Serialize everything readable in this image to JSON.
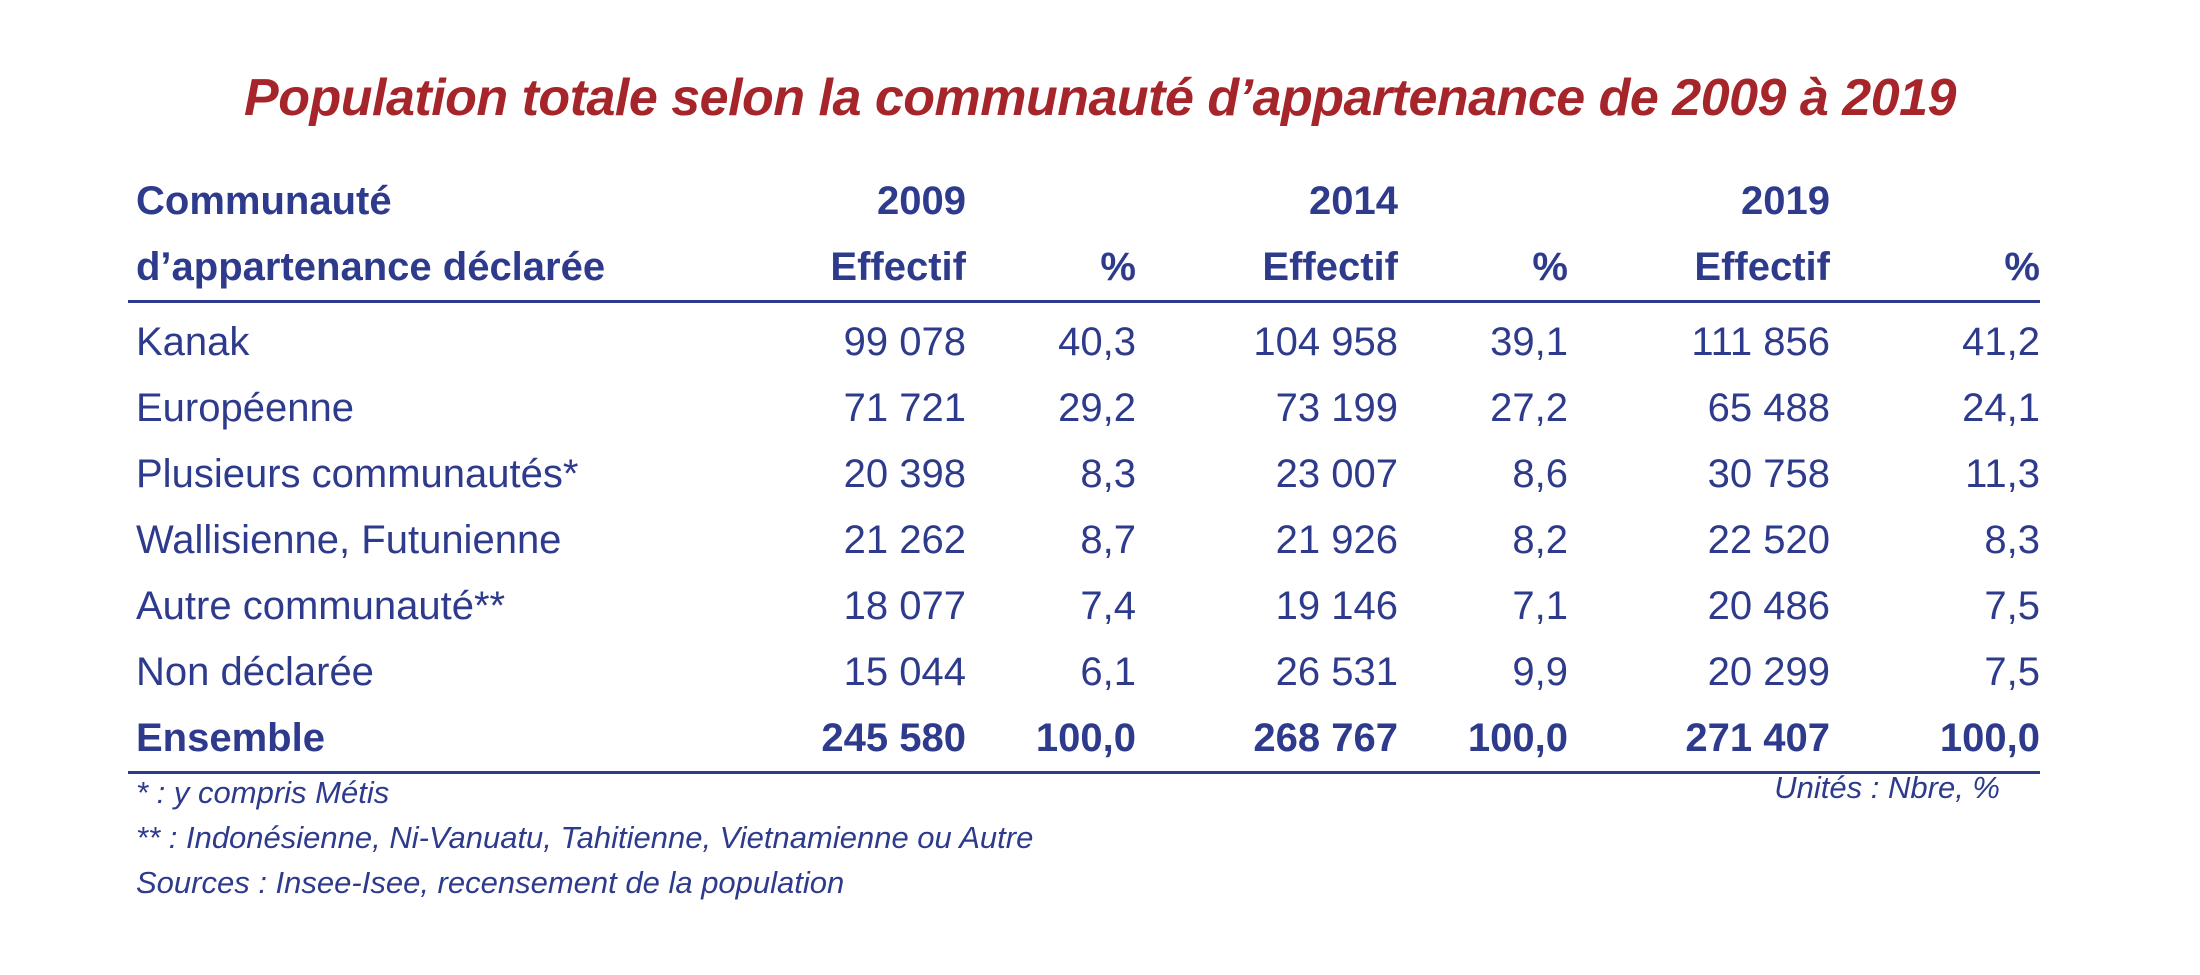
{
  "title": "Population totale selon la communauté d’appartenance de 2009 à 2019",
  "header": {
    "label_line1": "Communauté",
    "label_line2": "d’appartenance déclarée",
    "years": [
      "2009",
      "2014",
      "2019"
    ],
    "effectif": "Effectif",
    "pct": "%"
  },
  "rows": [
    {
      "label": "Kanak",
      "v": [
        "99 078",
        "40,3",
        "104 958",
        "39,1",
        "111 856",
        "41,2"
      ]
    },
    {
      "label": "Européenne",
      "v": [
        "71 721",
        "29,2",
        "73 199",
        "27,2",
        "65 488",
        "24,1"
      ]
    },
    {
      "label": "Plusieurs communautés*",
      "v": [
        "20 398",
        "8,3",
        "23 007",
        "8,6",
        "30 758",
        "11,3"
      ]
    },
    {
      "label": "Wallisienne, Futunienne",
      "v": [
        "21 262",
        "8,7",
        "21 926",
        "8,2",
        "22 520",
        "8,3"
      ]
    },
    {
      "label": "Autre communauté**",
      "v": [
        "18 077",
        "7,4",
        "19 146",
        "7,1",
        "20 486",
        "7,5"
      ]
    },
    {
      "label": "Non déclarée",
      "v": [
        "15 044",
        "6,1",
        "26 531",
        "9,9",
        "20 299",
        "7,5"
      ]
    }
  ],
  "total": {
    "label": "Ensemble",
    "v": [
      "245 580",
      "100,0",
      "268 767",
      "100,0",
      "271 407",
      "100,0"
    ]
  },
  "notes": [
    "* : y compris Métis",
    "** : Indonésienne, Ni-Vanuatu, Tahitienne, Vietnamienne ou Autre",
    "Sources : Insee-Isee, recensement de la population"
  ],
  "units": "Unités : Nbre, %"
}
